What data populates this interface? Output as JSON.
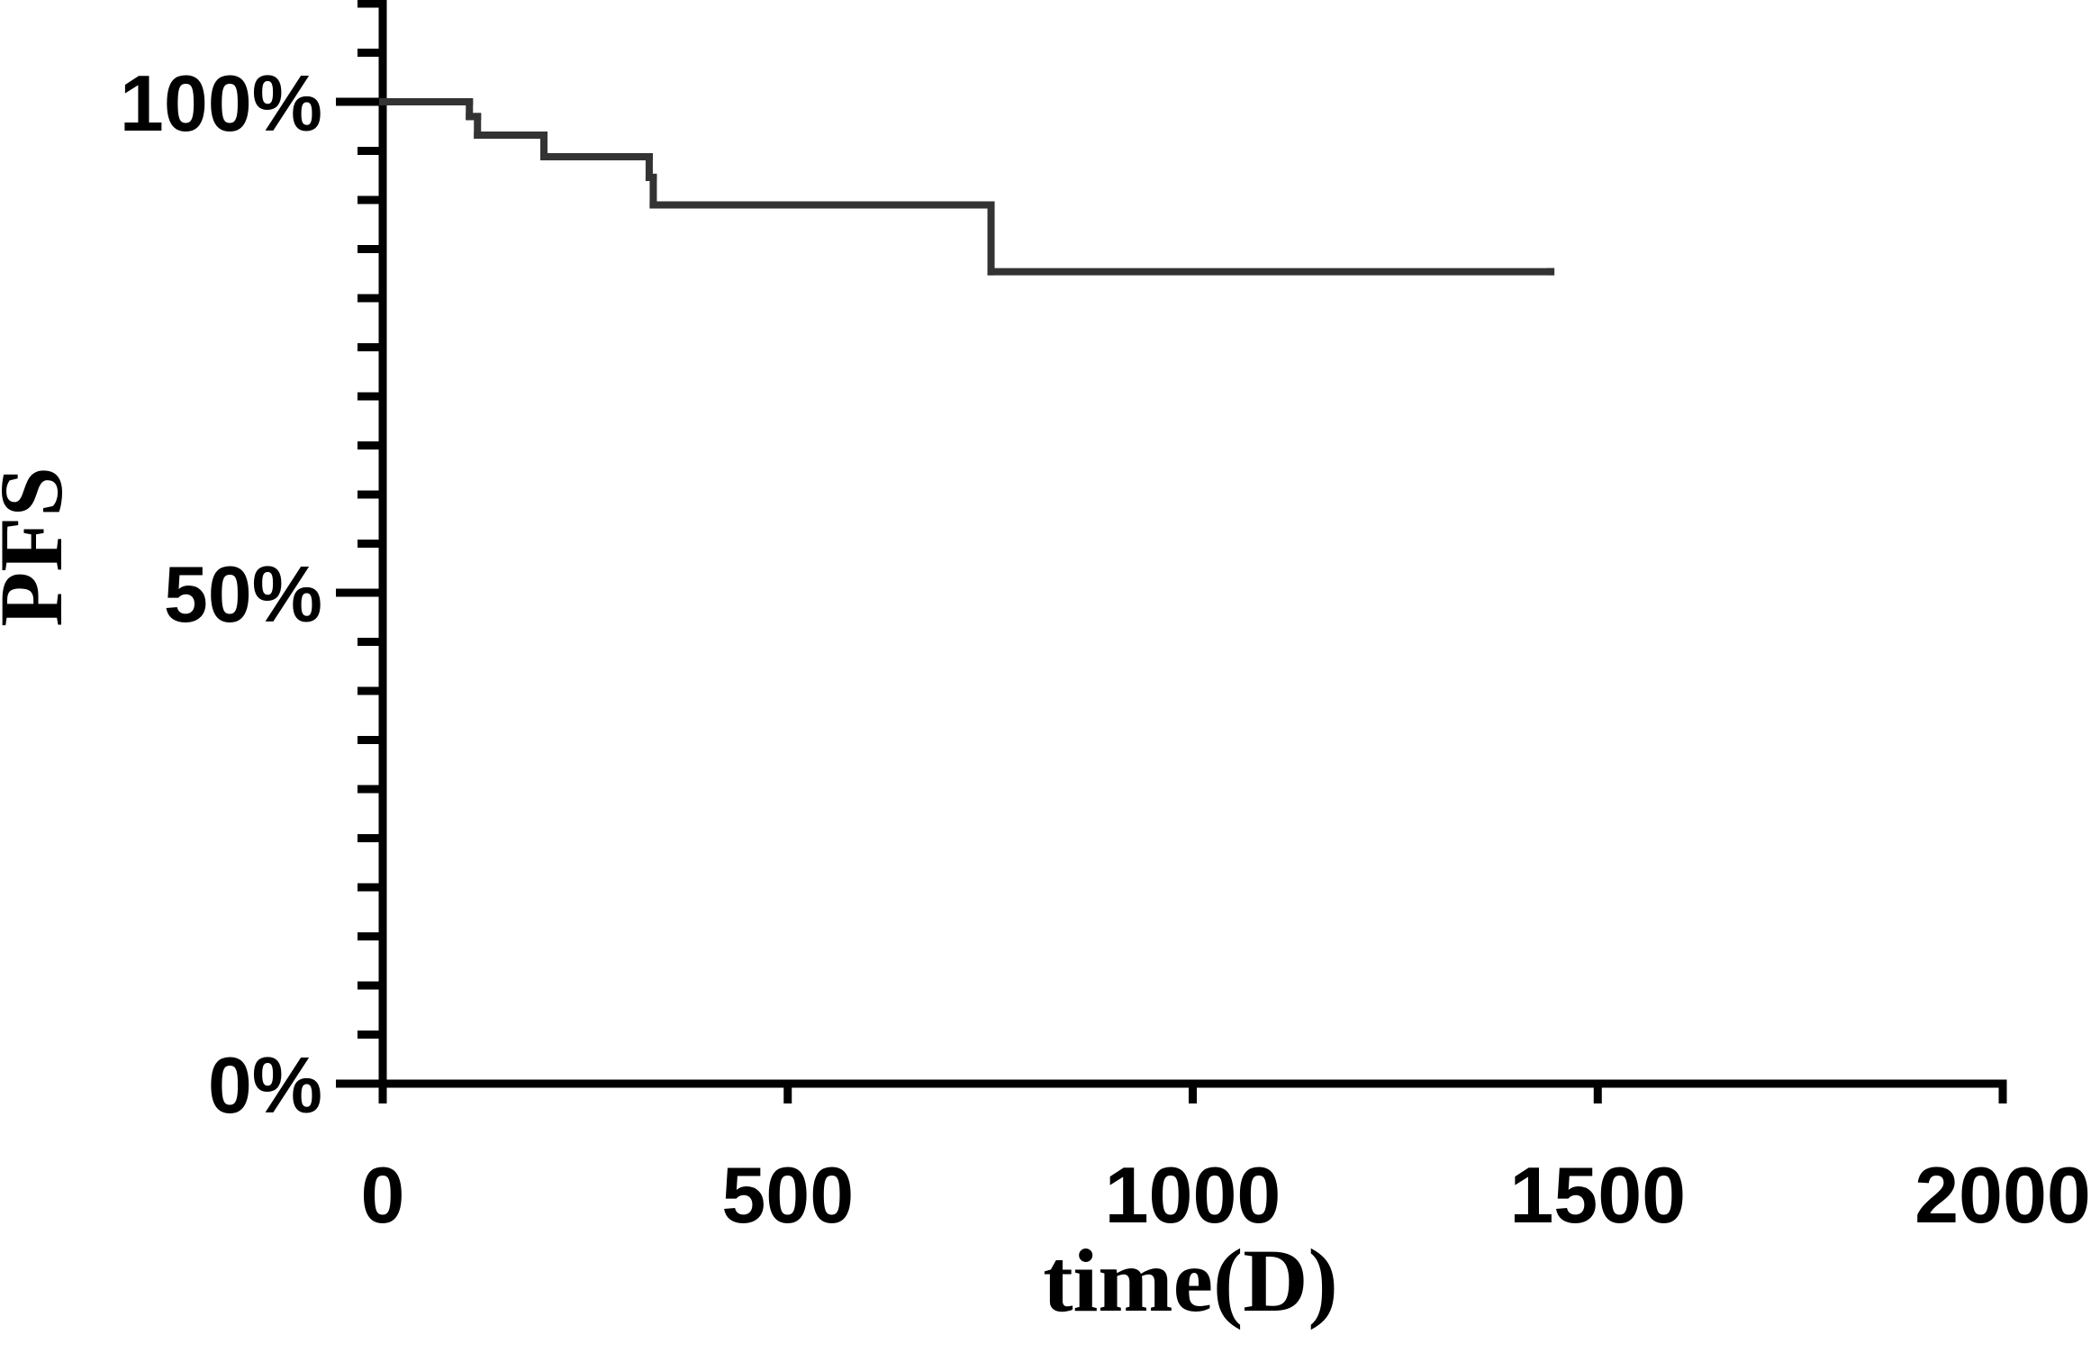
{
  "chart_data": {
    "type": "step",
    "x_label": "time(D)",
    "y_label": "PFS",
    "x": [
      0,
      107,
      117,
      199,
      329,
      334,
      751,
      1442
    ],
    "values": [
      100,
      98.5,
      96.6,
      94.4,
      92.3,
      89.5,
      82.7,
      82.7
    ],
    "color": "#333333",
    "xlim": [
      0,
      2000
    ],
    "xticks": [
      0,
      500,
      1000,
      1500,
      2000
    ],
    "ylim": [
      0,
      110
    ],
    "yticks": [
      {
        "value": 0,
        "label": "0%"
      },
      {
        "value": 50,
        "label": "50%"
      },
      {
        "value": 100,
        "label": "100%"
      }
    ],
    "yminorticks": [
      5,
      10,
      15,
      20,
      25,
      30,
      35,
      40,
      45,
      55,
      60,
      65,
      70,
      75,
      80,
      85,
      90,
      95,
      105,
      110
    ],
    "grid": false
  }
}
